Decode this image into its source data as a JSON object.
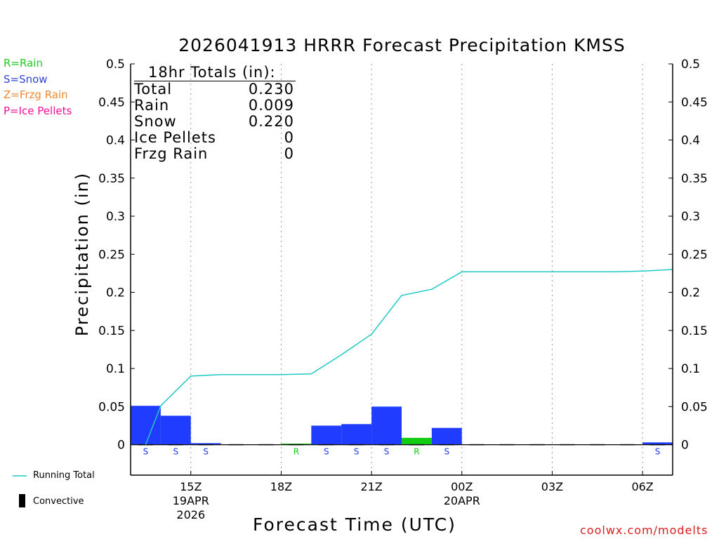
{
  "title": "2026041913 HRRR Forecast Precipitation KMSS",
  "type_legend": [
    {
      "label": "R=Rain",
      "color": "#22cc22"
    },
    {
      "label": "S=Snow",
      "color": "#3344dd"
    },
    {
      "label": "Z=Frzg Rain",
      "color": "#ee8833"
    },
    {
      "label": "P=Ice Pellets",
      "color": "#ee1199"
    }
  ],
  "totals": {
    "heading": "18hr Totals (in):",
    "rows": [
      {
        "label": "Total",
        "value": "0.230"
      },
      {
        "label": "Rain",
        "value": "0.009"
      },
      {
        "label": "Snow",
        "value": "0.220"
      },
      {
        "label": "Ice Pellets",
        "value": "0"
      },
      {
        "label": "Frzg Rain",
        "value": "0"
      }
    ]
  },
  "side_legend": {
    "running_total": "Running Total",
    "convective": "Convective"
  },
  "credit": "coolwx.com/modelts",
  "colors": {
    "snow": "#1f3cff",
    "rain": "#11cc11",
    "running_total": "#20c8c8",
    "grid": "#999999"
  },
  "chart_data": {
    "type": "bar",
    "title": "2026041913 HRRR Forecast Precipitation KMSS",
    "xlabel": "Forecast Time (UTC)",
    "ylabel": "Precipitation (in)",
    "ylim": [
      -0.04,
      0.5
    ],
    "yticks": [
      "0.5",
      "0.45",
      "0.4",
      "0.35",
      "0.3",
      "0.25",
      "0.2",
      "0.15",
      "0.1",
      "0.05",
      "0"
    ],
    "xlim_hours": [
      13,
      31
    ],
    "xticks": [
      {
        "hour": 15,
        "label": "15Z",
        "sub": [
          "19APR",
          "2026"
        ]
      },
      {
        "hour": 18,
        "label": "18Z",
        "sub": []
      },
      {
        "hour": 21,
        "label": "21Z",
        "sub": []
      },
      {
        "hour": 24,
        "label": "00Z",
        "sub": [
          "20APR"
        ]
      },
      {
        "hour": 27,
        "label": "03Z",
        "sub": []
      },
      {
        "hour": 30,
        "label": "06Z",
        "sub": []
      }
    ],
    "hours": [
      14,
      15,
      16,
      17,
      18,
      19,
      20,
      21,
      22,
      23,
      24,
      25,
      26,
      27,
      28,
      29,
      30,
      31
    ],
    "hourly": [
      0.051,
      0.038,
      0.002,
      0,
      0,
      0.001,
      0.025,
      0.027,
      0.05,
      0.009,
      0.022,
      0,
      0,
      0,
      0,
      0,
      0,
      0.003
    ],
    "ptype": [
      "S",
      "S",
      "S",
      "",
      "",
      "R",
      "S",
      "S",
      "S",
      "R",
      "S",
      "",
      "",
      "",
      "",
      "",
      "",
      "S"
    ],
    "running_total_series": {
      "name": "Running Total",
      "x": [
        13.5,
        14,
        15,
        16,
        17,
        18,
        19,
        20,
        21,
        22,
        23,
        24,
        25,
        26,
        27,
        28,
        29,
        30,
        31
      ],
      "y": [
        0,
        0.051,
        0.09,
        0.092,
        0.092,
        0.092,
        0.093,
        0.118,
        0.145,
        0.196,
        0.204,
        0.227,
        0.227,
        0.227,
        0.227,
        0.227,
        0.227,
        0.228,
        0.23
      ]
    },
    "convective": [
      0,
      0,
      0,
      0,
      0,
      0,
      0,
      0,
      0,
      0,
      0,
      0,
      0,
      0,
      0,
      0,
      0,
      0
    ]
  }
}
